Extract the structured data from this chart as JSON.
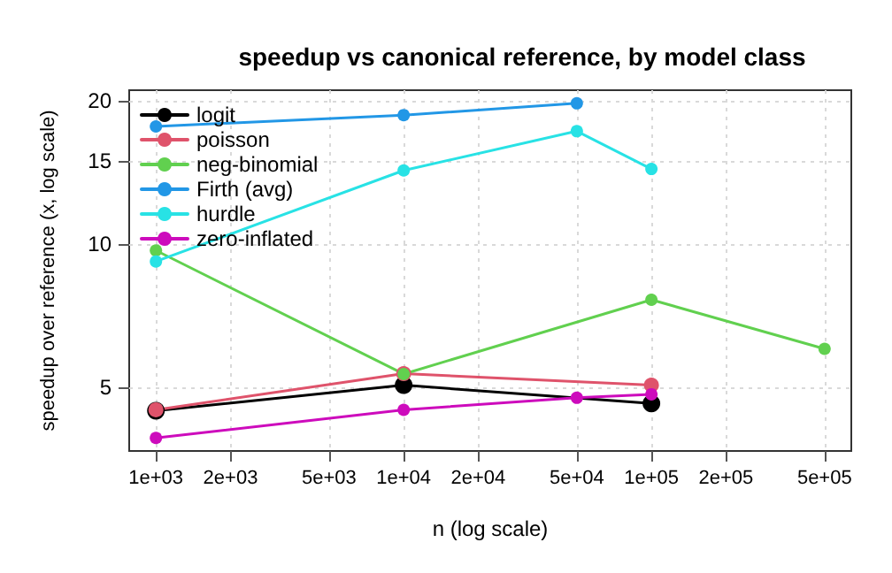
{
  "chart_data": {
    "type": "line",
    "title": "speedup vs canonical reference, by model class",
    "xlabel": "n (log scale)",
    "ylabel": "speedup over reference (x, log scale)",
    "log": "xy",
    "xlim": [
      780,
      641000
    ],
    "ylim": [
      3.67,
      21.1
    ],
    "xticks": [
      {
        "value": 1000,
        "label": "1e+03"
      },
      {
        "value": 2000,
        "label": "2e+03"
      },
      {
        "value": 5000,
        "label": "5e+03"
      },
      {
        "value": 10000,
        "label": "1e+04"
      },
      {
        "value": 20000,
        "label": "2e+04"
      },
      {
        "value": 50000,
        "label": "5e+04"
      },
      {
        "value": 100000,
        "label": "1e+05"
      },
      {
        "value": 200000,
        "label": "2e+05"
      },
      {
        "value": 500000,
        "label": "5e+05"
      }
    ],
    "yticks": [
      5,
      10,
      15,
      20
    ],
    "grid": true,
    "legend": "top left",
    "marker": "circle",
    "line_style": "solid",
    "series": [
      {
        "name": "logit",
        "color": "#000000",
        "x": [
          1000,
          10000,
          100000
        ],
        "values": [
          4.46,
          5.05,
          4.62
        ]
      },
      {
        "name": "poisson",
        "color": "#df536b",
        "x": [
          1000,
          10000,
          100000
        ],
        "values": [
          4.48,
          5.34,
          5.05
        ]
      },
      {
        "name": "neg-binomial",
        "color": "#61d04f",
        "x": [
          1000,
          10000,
          100000,
          500000
        ],
        "values": [
          9.7,
          5.33,
          7.64,
          6.02
        ]
      },
      {
        "name": "Firth (avg)",
        "color": "#2297e6",
        "x": [
          1000,
          10000,
          50000
        ],
        "values": [
          17.7,
          18.7,
          19.8
        ]
      },
      {
        "name": "hurdle",
        "color": "#28e2e5",
        "x": [
          1000,
          10000,
          50000,
          100000
        ],
        "values": [
          9.2,
          14.3,
          17.3,
          14.4
        ]
      },
      {
        "name": "zero-inflated",
        "color": "#cd0bbc",
        "x": [
          1000,
          10000,
          50000,
          100000
        ],
        "values": [
          3.91,
          4.48,
          4.75,
          4.83
        ]
      }
    ]
  }
}
